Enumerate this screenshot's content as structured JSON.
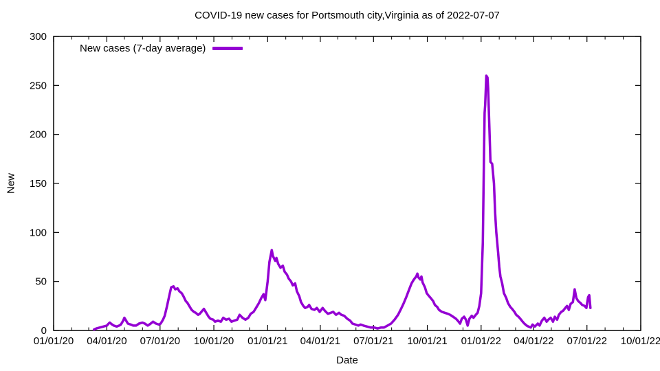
{
  "page": {
    "title": "COVID-19 new cases for Portsmouth city,Virginia as of 2022-07-07",
    "background": "#ffffff"
  },
  "colors": {
    "series": "#9400d3",
    "axis": "#000000",
    "text": "#000000"
  },
  "chart_data": {
    "type": "line",
    "title": "COVID-19 new cases for Portsmouth city,Virginia as of 2022-07-07",
    "xlabel": "Date",
    "ylabel": "New",
    "grid": false,
    "legend_position": "top-left-inside",
    "x_range": [
      "2020-01-01",
      "2022-10-01"
    ],
    "ylim": [
      0,
      300
    ],
    "y_ticks": [
      0,
      50,
      100,
      150,
      200,
      250,
      300
    ],
    "x_ticks": [
      {
        "label": "01/01/20",
        "date": "2020-01-01"
      },
      {
        "label": "04/01/20",
        "date": "2020-04-01"
      },
      {
        "label": "07/01/20",
        "date": "2020-07-01"
      },
      {
        "label": "10/01/20",
        "date": "2020-10-01"
      },
      {
        "label": "01/01/21",
        "date": "2021-01-01"
      },
      {
        "label": "04/01/21",
        "date": "2021-04-01"
      },
      {
        "label": "07/01/21",
        "date": "2021-07-01"
      },
      {
        "label": "10/01/21",
        "date": "2021-10-01"
      },
      {
        "label": "01/01/22",
        "date": "2022-01-01"
      },
      {
        "label": "04/01/22",
        "date": "2022-04-01"
      },
      {
        "label": "07/01/22",
        "date": "2022-07-01"
      },
      {
        "label": "10/01/22",
        "date": "2022-10-01"
      }
    ],
    "minor_x_ticks": "monthly",
    "legend": {
      "entries": [
        {
          "label": "New cases (7-day average)",
          "color": "#9400d3"
        }
      ]
    },
    "series": [
      {
        "name": "New cases (7-day average)",
        "color": "#9400d3",
        "points": [
          [
            "2020-03-10",
            1
          ],
          [
            "2020-03-14",
            2
          ],
          [
            "2020-03-20",
            3
          ],
          [
            "2020-03-26",
            4
          ],
          [
            "2020-04-01",
            5
          ],
          [
            "2020-04-04",
            7
          ],
          [
            "2020-04-06",
            8
          ],
          [
            "2020-04-10",
            6
          ],
          [
            "2020-04-13",
            5
          ],
          [
            "2020-04-18",
            4
          ],
          [
            "2020-04-22",
            5
          ],
          [
            "2020-04-25",
            6
          ],
          [
            "2020-04-29",
            10
          ],
          [
            "2020-05-01",
            13
          ],
          [
            "2020-05-03",
            11
          ],
          [
            "2020-05-07",
            7
          ],
          [
            "2020-05-12",
            6
          ],
          [
            "2020-05-16",
            5
          ],
          [
            "2020-05-21",
            5
          ],
          [
            "2020-05-26",
            7
          ],
          [
            "2020-06-01",
            8
          ],
          [
            "2020-06-05",
            7
          ],
          [
            "2020-06-10",
            5
          ],
          [
            "2020-06-15",
            7
          ],
          [
            "2020-06-19",
            9
          ],
          [
            "2020-06-24",
            7
          ],
          [
            "2020-06-29",
            6
          ],
          [
            "2020-07-02",
            7
          ],
          [
            "2020-07-06",
            11
          ],
          [
            "2020-07-09",
            15
          ],
          [
            "2020-07-13",
            25
          ],
          [
            "2020-07-17",
            36
          ],
          [
            "2020-07-20",
            44
          ],
          [
            "2020-07-24",
            45
          ],
          [
            "2020-07-27",
            42
          ],
          [
            "2020-07-31",
            43
          ],
          [
            "2020-08-03",
            40
          ],
          [
            "2020-08-07",
            38
          ],
          [
            "2020-08-10",
            35
          ],
          [
            "2020-08-14",
            30
          ],
          [
            "2020-08-17",
            28
          ],
          [
            "2020-08-21",
            24
          ],
          [
            "2020-08-24",
            21
          ],
          [
            "2020-08-28",
            19
          ],
          [
            "2020-08-31",
            18
          ],
          [
            "2020-09-04",
            16
          ],
          [
            "2020-09-07",
            17
          ],
          [
            "2020-09-11",
            20
          ],
          [
            "2020-09-14",
            22
          ],
          [
            "2020-09-18",
            18
          ],
          [
            "2020-09-22",
            14
          ],
          [
            "2020-09-25",
            12
          ],
          [
            "2020-09-30",
            11
          ],
          [
            "2020-10-03",
            9
          ],
          [
            "2020-10-08",
            10
          ],
          [
            "2020-10-13",
            9
          ],
          [
            "2020-10-17",
            13
          ],
          [
            "2020-10-22",
            11
          ],
          [
            "2020-10-27",
            12
          ],
          [
            "2020-10-31",
            9
          ],
          [
            "2020-11-05",
            10
          ],
          [
            "2020-11-10",
            11
          ],
          [
            "2020-11-14",
            16
          ],
          [
            "2020-11-19",
            13
          ],
          [
            "2020-11-24",
            11
          ],
          [
            "2020-11-29",
            13
          ],
          [
            "2020-12-03",
            17
          ],
          [
            "2020-12-08",
            19
          ],
          [
            "2020-12-13",
            24
          ],
          [
            "2020-12-17",
            28
          ],
          [
            "2020-12-21",
            33
          ],
          [
            "2020-12-25",
            37
          ],
          [
            "2020-12-28",
            31
          ],
          [
            "2021-01-01",
            50
          ],
          [
            "2021-01-04",
            70
          ],
          [
            "2021-01-08",
            82
          ],
          [
            "2021-01-10",
            76
          ],
          [
            "2021-01-14",
            71
          ],
          [
            "2021-01-16",
            74
          ],
          [
            "2021-01-19",
            68
          ],
          [
            "2021-01-23",
            64
          ],
          [
            "2021-01-27",
            66
          ],
          [
            "2021-01-30",
            60
          ],
          [
            "2021-02-03",
            57
          ],
          [
            "2021-02-06",
            53
          ],
          [
            "2021-02-10",
            50
          ],
          [
            "2021-02-13",
            46
          ],
          [
            "2021-02-17",
            48
          ],
          [
            "2021-02-20",
            40
          ],
          [
            "2021-02-24",
            35
          ],
          [
            "2021-02-27",
            29
          ],
          [
            "2021-03-03",
            25
          ],
          [
            "2021-03-06",
            23
          ],
          [
            "2021-03-10",
            24
          ],
          [
            "2021-03-13",
            26
          ],
          [
            "2021-03-17",
            22
          ],
          [
            "2021-03-22",
            21
          ],
          [
            "2021-03-26",
            23
          ],
          [
            "2021-03-31",
            19
          ],
          [
            "2021-04-05",
            23
          ],
          [
            "2021-04-09",
            20
          ],
          [
            "2021-04-14",
            17
          ],
          [
            "2021-04-19",
            18
          ],
          [
            "2021-04-23",
            19
          ],
          [
            "2021-04-28",
            16
          ],
          [
            "2021-05-03",
            18
          ],
          [
            "2021-05-07",
            16
          ],
          [
            "2021-05-12",
            15
          ],
          [
            "2021-05-17",
            12
          ],
          [
            "2021-05-22",
            10
          ],
          [
            "2021-05-26",
            7
          ],
          [
            "2021-05-31",
            6
          ],
          [
            "2021-06-05",
            5
          ],
          [
            "2021-06-09",
            6
          ],
          [
            "2021-06-14",
            5
          ],
          [
            "2021-06-20",
            4
          ],
          [
            "2021-06-26",
            3
          ],
          [
            "2021-07-02",
            3
          ],
          [
            "2021-07-08",
            2
          ],
          [
            "2021-07-14",
            3
          ],
          [
            "2021-07-19",
            3
          ],
          [
            "2021-07-25",
            5
          ],
          [
            "2021-07-31",
            7
          ],
          [
            "2021-08-06",
            11
          ],
          [
            "2021-08-12",
            16
          ],
          [
            "2021-08-17",
            22
          ],
          [
            "2021-08-21",
            27
          ],
          [
            "2021-08-26",
            34
          ],
          [
            "2021-08-31",
            42
          ],
          [
            "2021-09-04",
            48
          ],
          [
            "2021-09-08",
            52
          ],
          [
            "2021-09-12",
            55
          ],
          [
            "2021-09-14",
            58
          ],
          [
            "2021-09-16",
            54
          ],
          [
            "2021-09-19",
            52
          ],
          [
            "2021-09-21",
            55
          ],
          [
            "2021-09-23",
            49
          ],
          [
            "2021-09-27",
            44
          ],
          [
            "2021-09-30",
            38
          ],
          [
            "2021-10-04",
            35
          ],
          [
            "2021-10-07",
            33
          ],
          [
            "2021-10-11",
            30
          ],
          [
            "2021-10-14",
            26
          ],
          [
            "2021-10-18",
            24
          ],
          [
            "2021-10-21",
            21
          ],
          [
            "2021-10-26",
            19
          ],
          [
            "2021-10-31",
            18
          ],
          [
            "2021-11-05",
            17
          ],
          [
            "2021-11-09",
            16
          ],
          [
            "2021-11-14",
            14
          ],
          [
            "2021-11-19",
            12
          ],
          [
            "2021-11-22",
            10
          ],
          [
            "2021-11-26",
            7
          ],
          [
            "2021-11-29",
            12
          ],
          [
            "2021-12-03",
            14
          ],
          [
            "2021-12-06",
            11
          ],
          [
            "2021-12-09",
            5
          ],
          [
            "2021-12-12",
            12
          ],
          [
            "2021-12-16",
            15
          ],
          [
            "2021-12-19",
            13
          ],
          [
            "2021-12-23",
            16
          ],
          [
            "2021-12-26",
            18
          ],
          [
            "2021-12-29",
            25
          ],
          [
            "2022-01-01",
            38
          ],
          [
            "2022-01-04",
            90
          ],
          [
            "2022-01-06",
            180
          ],
          [
            "2022-01-07",
            222
          ],
          [
            "2022-01-08",
            230
          ],
          [
            "2022-01-10",
            260
          ],
          [
            "2022-01-12",
            258
          ],
          [
            "2022-01-13",
            247
          ],
          [
            "2022-01-15",
            210
          ],
          [
            "2022-01-17",
            172
          ],
          [
            "2022-01-20",
            170
          ],
          [
            "2022-01-23",
            150
          ],
          [
            "2022-01-25",
            120
          ],
          [
            "2022-01-27",
            100
          ],
          [
            "2022-01-30",
            80
          ],
          [
            "2022-02-01",
            65
          ],
          [
            "2022-02-03",
            55
          ],
          [
            "2022-02-06",
            48
          ],
          [
            "2022-02-09",
            38
          ],
          [
            "2022-02-13",
            33
          ],
          [
            "2022-02-16",
            28
          ],
          [
            "2022-02-20",
            24
          ],
          [
            "2022-02-23",
            22
          ],
          [
            "2022-02-27",
            19
          ],
          [
            "2022-03-02",
            16
          ],
          [
            "2022-03-06",
            14
          ],
          [
            "2022-03-09",
            12
          ],
          [
            "2022-03-13",
            9
          ],
          [
            "2022-03-16",
            7
          ],
          [
            "2022-03-20",
            5
          ],
          [
            "2022-03-23",
            4
          ],
          [
            "2022-03-27",
            3
          ],
          [
            "2022-03-30",
            6
          ],
          [
            "2022-04-03",
            4
          ],
          [
            "2022-04-08",
            7
          ],
          [
            "2022-04-11",
            5
          ],
          [
            "2022-04-15",
            10
          ],
          [
            "2022-04-19",
            13
          ],
          [
            "2022-04-23",
            9
          ],
          [
            "2022-04-26",
            11
          ],
          [
            "2022-04-30",
            13
          ],
          [
            "2022-05-04",
            9
          ],
          [
            "2022-05-07",
            14
          ],
          [
            "2022-05-11",
            11
          ],
          [
            "2022-05-14",
            16
          ],
          [
            "2022-05-18",
            19
          ],
          [
            "2022-05-21",
            20
          ],
          [
            "2022-05-25",
            23
          ],
          [
            "2022-05-28",
            25
          ],
          [
            "2022-05-31",
            21
          ],
          [
            "2022-06-03",
            27
          ],
          [
            "2022-06-07",
            29
          ],
          [
            "2022-06-10",
            42
          ],
          [
            "2022-06-13",
            33
          ],
          [
            "2022-06-16",
            30
          ],
          [
            "2022-06-20",
            28
          ],
          [
            "2022-06-23",
            26
          ],
          [
            "2022-06-27",
            25
          ],
          [
            "2022-06-30",
            23
          ],
          [
            "2022-07-03",
            34
          ],
          [
            "2022-07-05",
            36
          ],
          [
            "2022-07-07",
            23
          ]
        ]
      }
    ]
  }
}
